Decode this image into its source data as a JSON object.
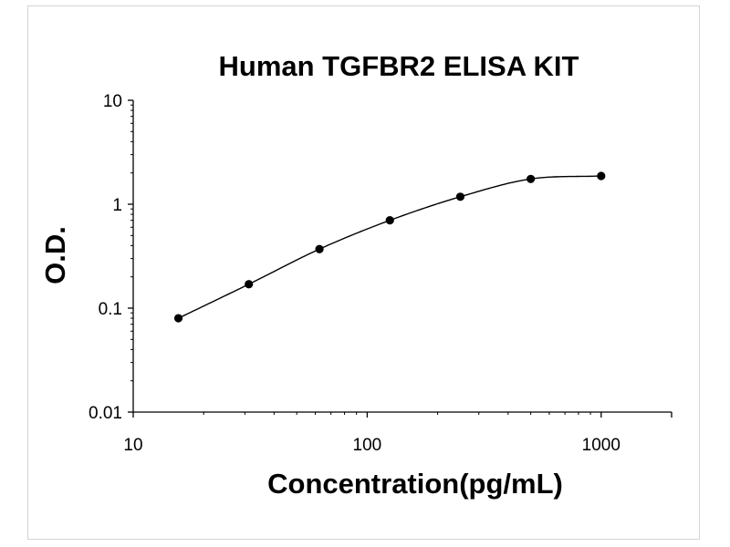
{
  "chart_data": {
    "type": "scatter",
    "title": "Human TGFBR2 ELISA KIT",
    "xlabel": "Concentration(pg/mL)",
    "ylabel": "O.D.",
    "xscale": "log",
    "yscale": "log",
    "xlim": [
      10,
      2000
    ],
    "ylim": [
      0.01,
      10
    ],
    "xticks": [
      10,
      100,
      1000
    ],
    "xtick_labels": [
      "10",
      "100",
      "1000"
    ],
    "yticks": [
      0.01,
      0.1,
      1,
      10
    ],
    "ytick_labels": [
      "0.01",
      "0.1",
      "1",
      "10"
    ],
    "grid": false,
    "legend": "none",
    "series": [
      {
        "x": [
          15.6,
          31.2,
          62.5,
          125,
          250,
          500,
          1000
        ],
        "y": [
          0.08,
          0.17,
          0.37,
          0.7,
          1.18,
          1.75,
          1.87
        ],
        "marker": "circle",
        "fit_curve": true
      }
    ],
    "colors": {
      "line": "#000000",
      "marker": "#000000",
      "axis": "#000000"
    }
  }
}
